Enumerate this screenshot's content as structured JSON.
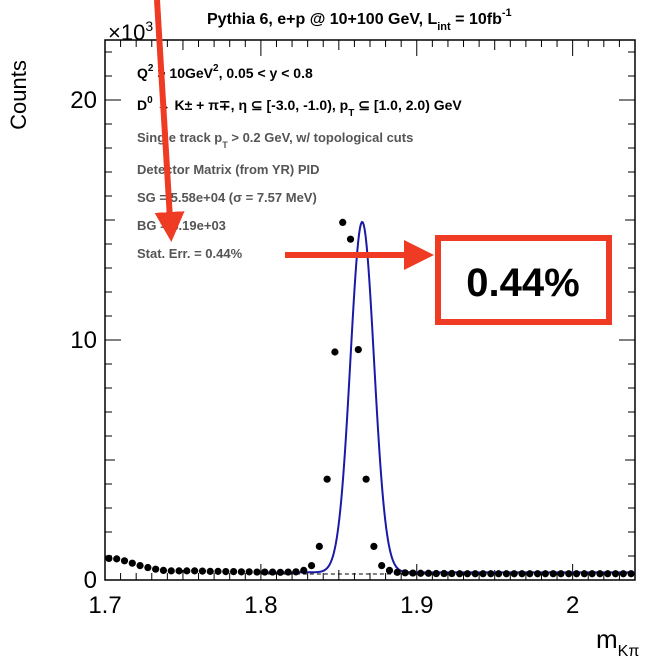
{
  "chart_data": {
    "type": "scatter",
    "title": "Pythia 6, e+p @ 10+100 GeV, L",
    "title_sub": "int",
    "title_tail": " = 10fb",
    "title_sup": "-1",
    "xlabel_main": "m",
    "xlabel_sub": "Kπ",
    "ylabel": "Counts",
    "y_multiplier_main": "×10",
    "y_multiplier_exp": "3",
    "xlim": [
      1.7,
      2.04
    ],
    "ylim": [
      0,
      22.5
    ],
    "x_ticks": [
      {
        "value": 1.7,
        "label": "1.7"
      },
      {
        "value": 1.8,
        "label": "1.8"
      },
      {
        "value": 1.9,
        "label": "1.9"
      },
      {
        "value": 2.0,
        "label": "2"
      }
    ],
    "y_ticks": [
      {
        "value": 0,
        "label": "0"
      },
      {
        "value": 10,
        "label": "10"
      },
      {
        "value": 20,
        "label": "20"
      }
    ],
    "series": [
      {
        "type": "points",
        "color": "#000000",
        "x": [
          1.7025,
          1.7075,
          1.7125,
          1.7175,
          1.7225,
          1.7275,
          1.7325,
          1.7375,
          1.7425,
          1.7475,
          1.7525,
          1.7575,
          1.7625,
          1.7675,
          1.7725,
          1.7775,
          1.7825,
          1.7875,
          1.7925,
          1.7975,
          1.8025,
          1.8075,
          1.8125,
          1.8175,
          1.8225,
          1.8275,
          1.8325,
          1.8375,
          1.8425,
          1.8475,
          1.8525,
          1.8575,
          1.8625,
          1.8675,
          1.8725,
          1.8775,
          1.8825,
          1.8875,
          1.8925,
          1.8975,
          1.9025,
          1.9075,
          1.9125,
          1.9175,
          1.9225,
          1.9275,
          1.9325,
          1.9375,
          1.9425,
          1.9475,
          1.9525,
          1.9575,
          1.9625,
          1.9675,
          1.9725,
          1.9775,
          1.9825,
          1.9875,
          1.9925,
          1.9975,
          2.0025,
          2.0075,
          2.0125,
          2.0175,
          2.0225,
          2.0275,
          2.0325,
          2.0375
        ],
        "y": [
          0.9,
          0.88,
          0.8,
          0.7,
          0.6,
          0.52,
          0.45,
          0.4,
          0.38,
          0.38,
          0.38,
          0.38,
          0.37,
          0.36,
          0.36,
          0.35,
          0.35,
          0.34,
          0.34,
          0.33,
          0.33,
          0.33,
          0.32,
          0.33,
          0.34,
          0.4,
          0.6,
          1.4,
          4.2,
          9.5,
          14.9,
          14.2,
          9.6,
          4.2,
          1.4,
          0.6,
          0.4,
          0.32,
          0.3,
          0.29,
          0.28,
          0.28,
          0.27,
          0.27,
          0.27,
          0.26,
          0.26,
          0.26,
          0.26,
          0.26,
          0.26,
          0.26,
          0.26,
          0.26,
          0.26,
          0.26,
          0.26,
          0.26,
          0.26,
          0.26,
          0.26,
          0.26,
          0.26,
          0.26,
          0.26,
          0.26,
          0.26,
          0.26
        ]
      },
      {
        "type": "gaussian_fit",
        "color": "#1a1aa6",
        "mean": 1.865,
        "sigma": 0.00757,
        "amplitude": 14.6,
        "background": 0.32
      },
      {
        "type": "background_fit",
        "color": "#000000",
        "style": "dashed",
        "x_range": [
          1.8,
          1.94
        ],
        "y": 0.25
      }
    ],
    "annotations": [
      {
        "text": "Q",
        "sup": "2",
        "tail": " > 10GeV",
        "sup2": "2",
        "tail2": ", 0.05 < y < 0.8",
        "style": "bold"
      },
      {
        "text": "D",
        "sup": "0",
        "tail": " → K± + π∓, η ⊆ [-3.0, -1.0), p",
        "sub": "T",
        "tail2": " ⊆ [1.0, 2.0) GeV",
        "style": "bold"
      },
      {
        "text": "Single track p",
        "sub": "T",
        "tail": " > 0.2 GeV, w/ topological cuts",
        "style": "grey"
      },
      {
        "text": "Detector Matrix (from YR) PID",
        "style": "grey"
      },
      {
        "text": "SG = 5.58e+04 (σ = 7.57 MeV)",
        "style": "grey"
      },
      {
        "text": "BG = 3.19e+03",
        "style": "grey"
      },
      {
        "text": "Stat. Err. = 0.44%",
        "style": "grey"
      }
    ],
    "callout": {
      "text": "0.44%",
      "color": "#ef3b24"
    }
  }
}
